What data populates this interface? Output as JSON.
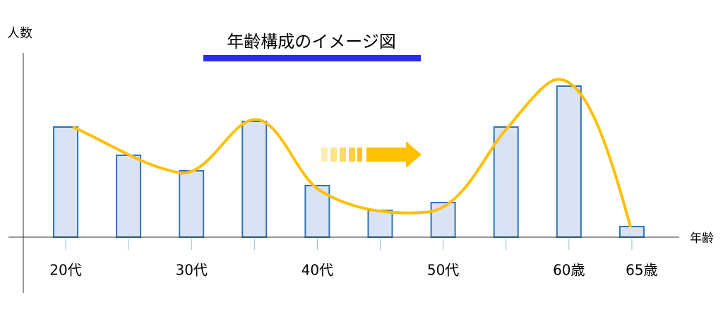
{
  "chart_data": {
    "type": "bar",
    "title": "年齢構成のイメージ図",
    "x_label": "年齢",
    "y_label": "人数",
    "categories": [
      "20代",
      null,
      "30代",
      null,
      "40代",
      null,
      "50代",
      null,
      "60歳",
      "65歳"
    ],
    "values": [
      156,
      116,
      94,
      164,
      73,
      38,
      49,
      156,
      214,
      15
    ],
    "color": "#dae3f3",
    "edge_color": "#2e75b6",
    "ylim": [
      0,
      260
    ]
  }
}
